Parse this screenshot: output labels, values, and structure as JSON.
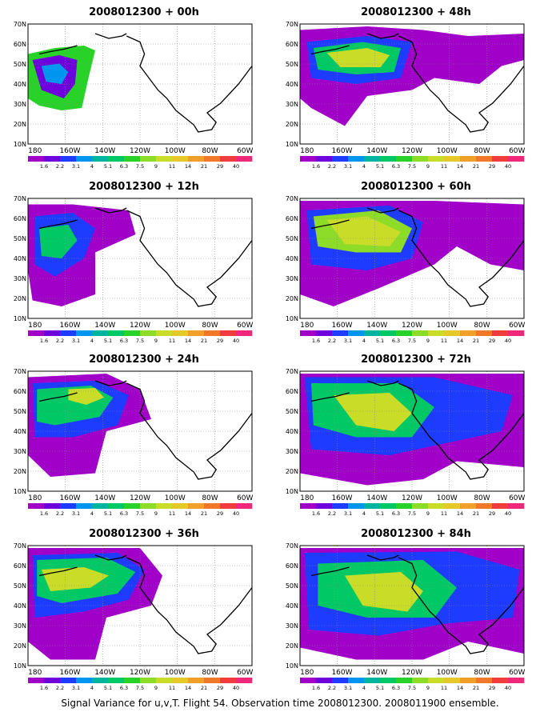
{
  "panels": [
    {
      "title": "2008012300 + 00h"
    },
    {
      "title": "2008012300 + 48h"
    },
    {
      "title": "2008012300 + 12h"
    },
    {
      "title": "2008012300 + 60h"
    },
    {
      "title": "2008012300 + 24h"
    },
    {
      "title": "2008012300 + 72h"
    },
    {
      "title": "2008012300 + 36h"
    },
    {
      "title": "2008012300 + 84h"
    }
  ],
  "lat_labels": [
    "70N",
    "60N",
    "50N",
    "40N",
    "30N",
    "20N",
    "10N"
  ],
  "lon_labels": [
    "180",
    "160W",
    "140W",
    "120W",
    "100W",
    "80W",
    "60W"
  ],
  "colorbar": {
    "labels": [
      "1.6",
      "2.2",
      "3.1",
      "4",
      "5.1",
      "6.3",
      "7.5",
      "9",
      "11",
      "14",
      "21",
      "29",
      "40"
    ],
    "colors": [
      "#a000c8",
      "#6e00dc",
      "#1e3cff",
      "#0096f0",
      "#00b4a0",
      "#00c864",
      "#28d228",
      "#8cdc28",
      "#c8dc28",
      "#e6c828",
      "#f0a028",
      "#f07828",
      "#f03c3c",
      "#f0287a"
    ]
  },
  "caption": "Signal Variance for u,v,T. Flight 54. Observation time 2008012300. 2008011900 ensemble."
}
